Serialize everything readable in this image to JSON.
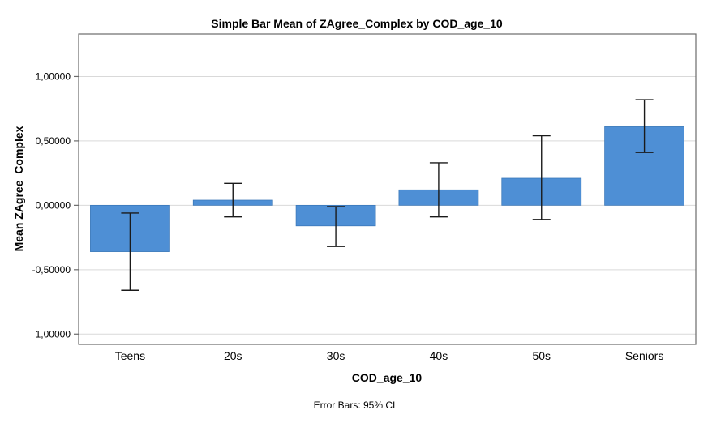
{
  "chart_data": {
    "type": "bar",
    "title": "Simple Bar Mean of ZAgree_Complex by COD_age_10",
    "xlabel": "COD_age_10",
    "ylabel": "Mean ZAgree_Complex",
    "footnote": "Error Bars: 95% CI",
    "categories": [
      "Teens",
      "20s",
      "30s",
      "40s",
      "50s",
      "Seniors"
    ],
    "values": [
      -0.36,
      0.04,
      -0.16,
      0.12,
      0.21,
      0.61
    ],
    "error_low": [
      -0.66,
      -0.09,
      -0.32,
      -0.09,
      -0.11,
      0.41
    ],
    "error_high": [
      -0.06,
      0.17,
      -0.01,
      0.33,
      0.54,
      0.82
    ],
    "ylim": [
      -1.0,
      1.0
    ],
    "yticks": [
      -1.0,
      -0.5,
      0.0,
      0.5,
      1.0
    ],
    "ytick_labels": [
      "-1,00000",
      "-0,50000",
      "0,00000",
      "0,50000",
      "1,00000"
    ],
    "grid": "horizontal",
    "legend": "none",
    "error_bars": "95% CI",
    "colors": {
      "bar_fill": "#4E8FD5",
      "bar_stroke": "#3A77B8",
      "grid_line": "#D9D9D9",
      "plot_border": "#6B6B6B",
      "error_bar": "#1A1A1A",
      "text": "#000000",
      "background": "#FFFFFF"
    }
  }
}
